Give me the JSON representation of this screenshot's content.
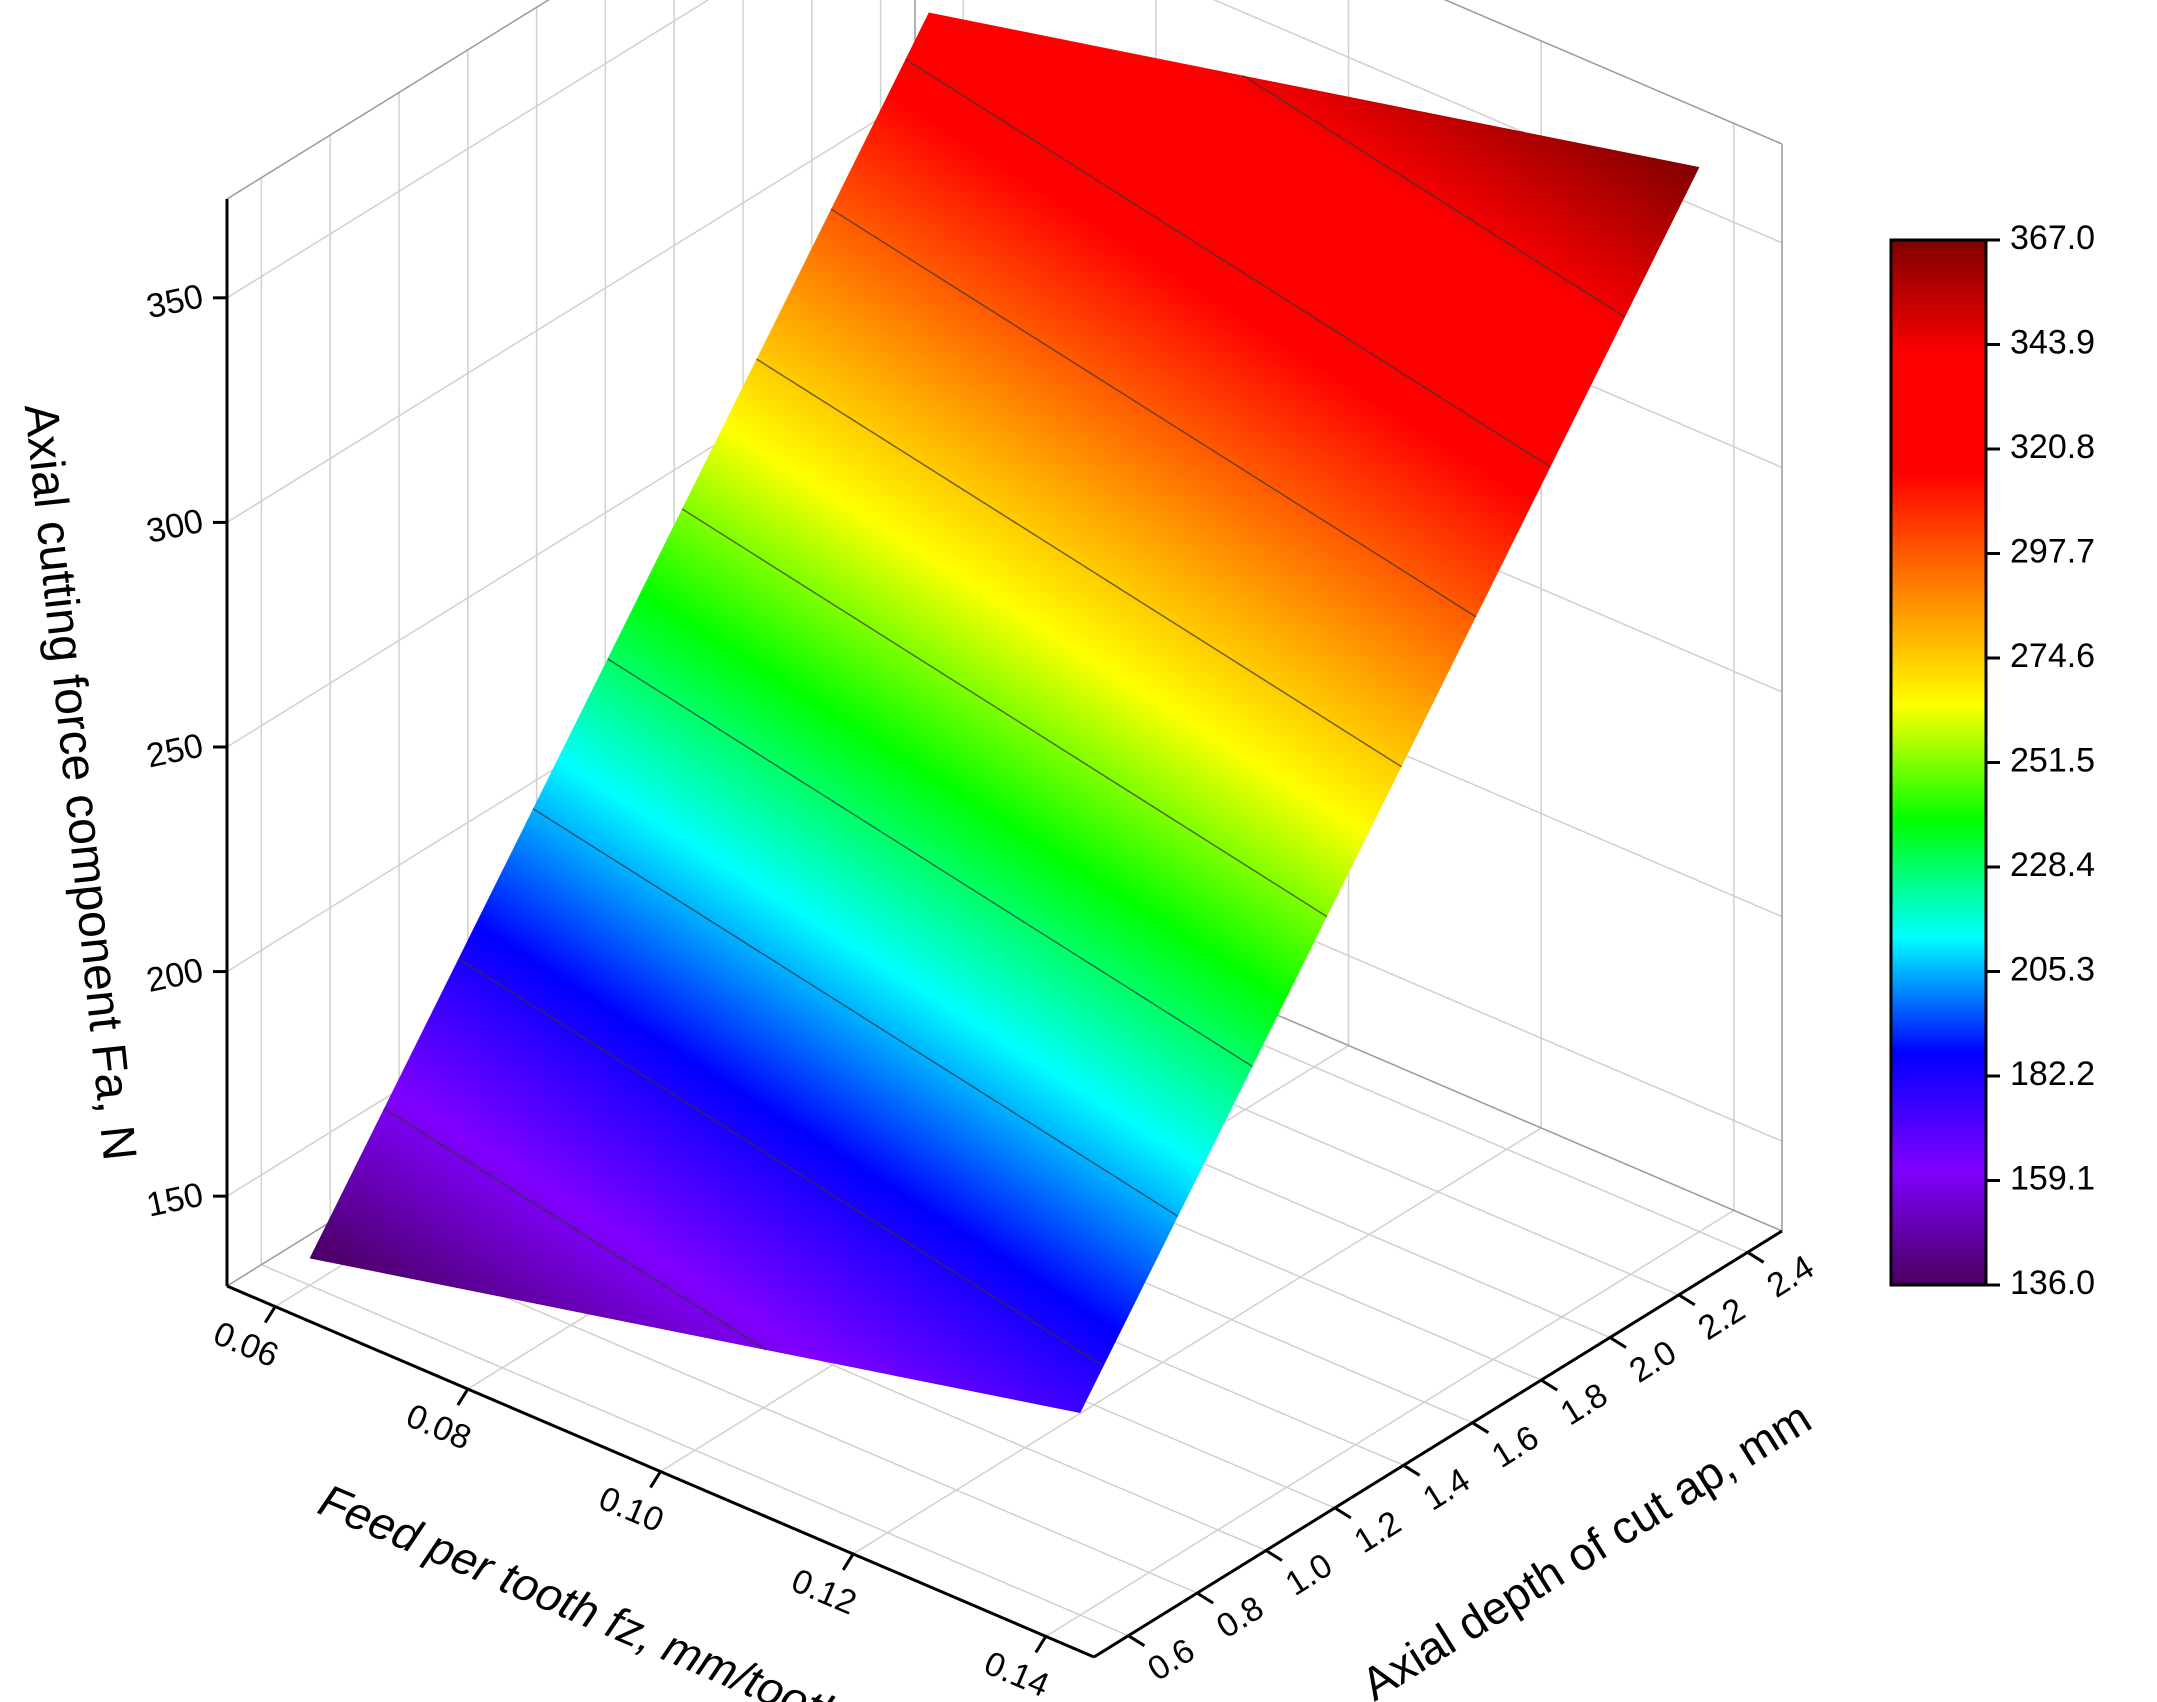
{
  "chart_data": {
    "type": "surface3d",
    "xlabel": "Feed per tooth fz, mm/tooth",
    "ylabel": "Axial depth of cut ap, mm",
    "zlabel": "Axial cutting force component Fa, N",
    "x": [
      0.06,
      0.14
    ],
    "y": [
      0.6,
      2.4
    ],
    "z": [
      [
        136,
        328
      ],
      [
        175,
        367
      ]
    ],
    "xlim": [
      0.055,
      0.145
    ],
    "xticks": [
      0.06,
      {
        "value": 0.08,
        "label": "0.08"
      },
      {
        "value": 0.1,
        "label": "0.10"
      },
      0.12,
      0.14
    ],
    "ylim": [
      0.5,
      2.5
    ],
    "yticks": [
      0.6,
      0.8,
      {
        "value": 1,
        "label": "1.0"
      },
      1.2,
      1.4,
      1.6,
      1.8,
      {
        "value": 2,
        "label": "2.0"
      },
      2.2,
      2.4
    ],
    "zlim": [
      130,
      372
    ],
    "zticks": [
      150,
      200,
      250,
      300,
      350
    ],
    "clim": [
      136,
      367
    ],
    "cticks": [
      {
        "value": 136,
        "label": "136.0"
      },
      159.1,
      182.2,
      205.3,
      228.4,
      251.5,
      274.6,
      297.7,
      320.8,
      343.9,
      {
        "value": 367,
        "label": "367.0"
      }
    ],
    "colormap": [
      "#4a0060",
      "#8000ff",
      "#0000ff",
      "#00ffff",
      "#00ff00",
      "#ffff00",
      "#ff8000",
      "#ff0000",
      "#ff0000",
      "#800000"
    ],
    "grid": true
  }
}
